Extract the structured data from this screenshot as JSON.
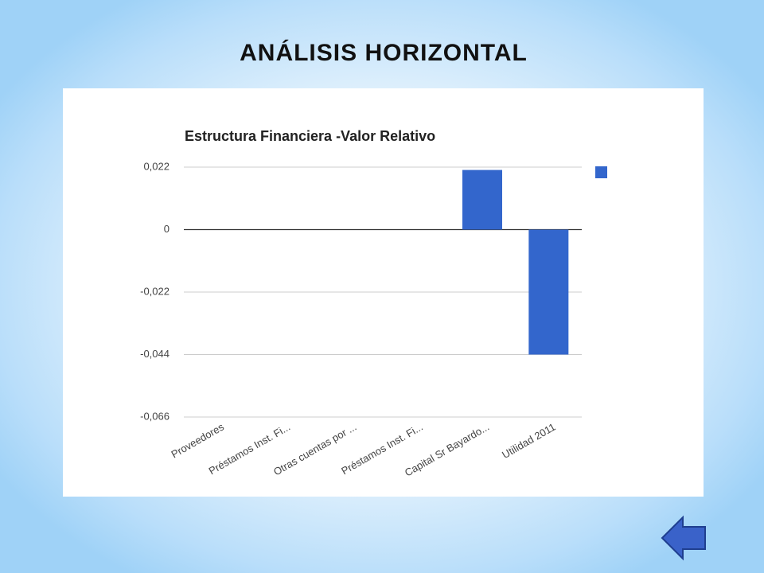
{
  "slide": {
    "title": "ANÁLISIS HORIZONTAL"
  },
  "chart_data": {
    "type": "bar",
    "title": "Estructura Financiera -Valor Relativo",
    "categories": [
      "Proveedores",
      "Préstamos Inst. Fi...",
      "Otras cuentas por ...",
      "Préstamos Inst. Fi...",
      "Capital Sr Bayardo...",
      "Utilidad 2011"
    ],
    "values": [
      0,
      0,
      0,
      0,
      0.021,
      -0.044
    ],
    "color": "#3366cc",
    "ylim": [
      -0.066,
      0.022
    ],
    "yticks": [
      {
        "value": 0.022,
        "label": "0,022"
      },
      0,
      {
        "value": -0.022,
        "label": "-0,022"
      },
      {
        "value": -0.044,
        "label": "-0,044"
      },
      {
        "value": -0.066,
        "label": "-0,066"
      }
    ],
    "grid": true
  }
}
